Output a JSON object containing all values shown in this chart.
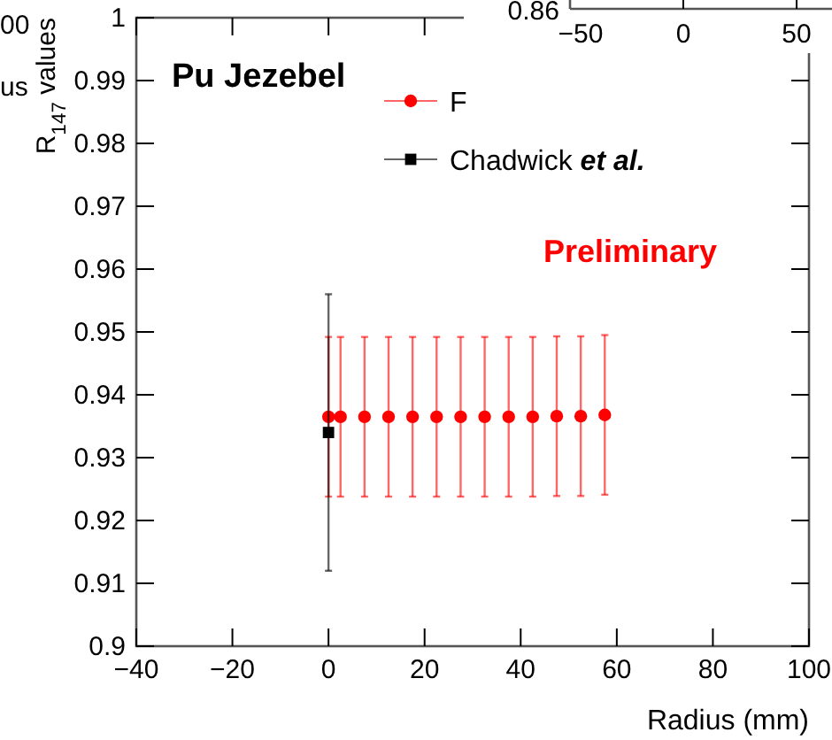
{
  "chart_data": {
    "type": "scatter",
    "xlabel": "Radius (mm)",
    "ylabel": "R$_{147}$ values",
    "annotations": [
      "Pu Jezebel",
      "Preliminary",
      "00",
      "us",
      "0.86",
      "−50",
      "0",
      "50"
    ],
    "xlim": [
      -40,
      100
    ],
    "xticks": [
      -40,
      -20,
      0,
      20,
      40,
      60,
      80,
      100
    ],
    "ylim": [
      0.9,
      1
    ],
    "yticks": [
      0.9,
      0.91,
      0.92,
      0.93,
      0.94,
      0.95,
      0.96,
      0.97,
      0.98,
      0.99,
      1
    ],
    "grid": false,
    "legend": "top",
    "series": [
      {
        "name": "F",
        "color": "#ff0000",
        "marker": "circle",
        "x": [
          0,
          2.5,
          7.5,
          12.5,
          17.5,
          22.5,
          27.5,
          32.5,
          37.5,
          42.5,
          47.5,
          52.5,
          57.5
        ],
        "values": [
          0.9365,
          0.9365,
          0.9365,
          0.9365,
          0.9365,
          0.9365,
          0.9365,
          0.9365,
          0.9365,
          0.9365,
          0.9366,
          0.9366,
          0.9368
        ],
        "errors": [
          0.0127,
          0.0127,
          0.0127,
          0.0127,
          0.0127,
          0.0127,
          0.0127,
          0.0127,
          0.0127,
          0.0127,
          0.0127,
          0.0127,
          0.0127
        ]
      },
      {
        "name": "Chadwick et al.",
        "color": "#000000",
        "marker": "square",
        "x": [
          0
        ],
        "values": [
          0.934
        ],
        "errors": [
          0.022
        ]
      }
    ]
  }
}
